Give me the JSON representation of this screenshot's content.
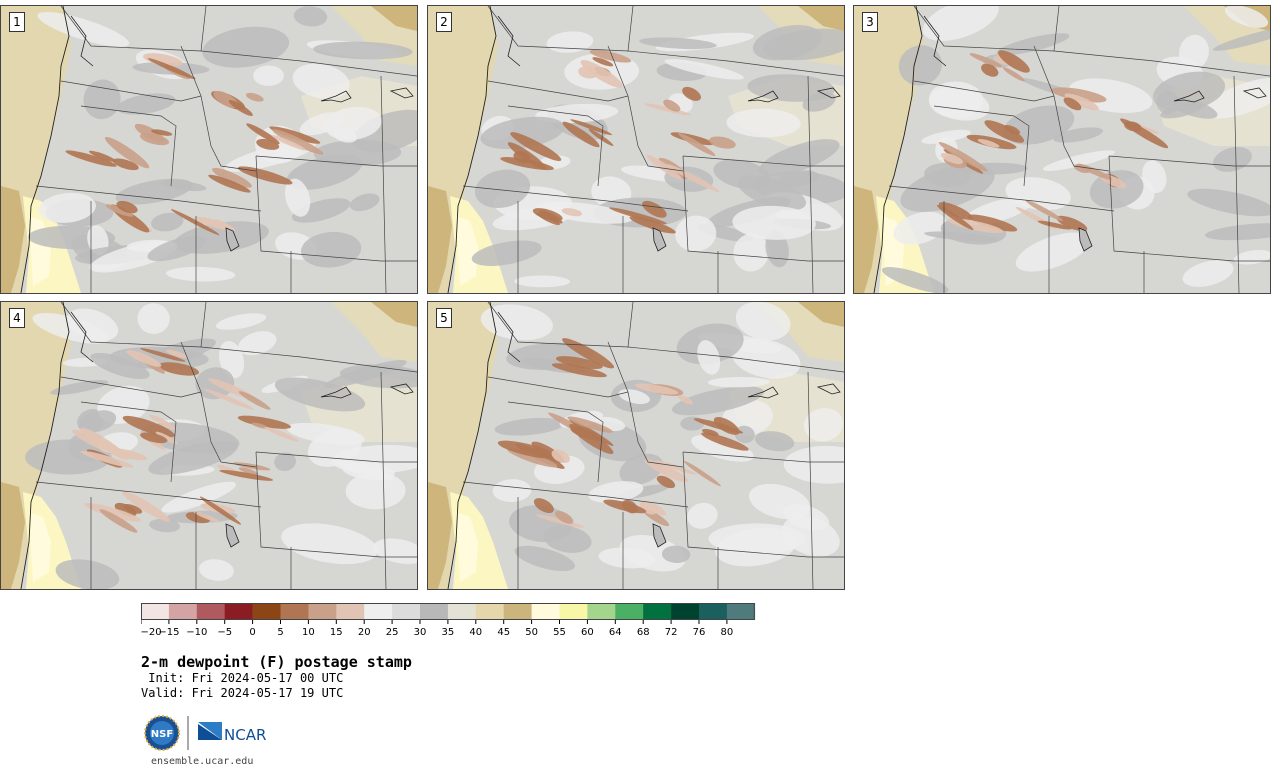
{
  "panels": [
    {
      "label": "1",
      "variant": 1
    },
    {
      "label": "2",
      "variant": 2
    },
    {
      "label": "3",
      "variant": 3
    },
    {
      "label": "4",
      "variant": 4
    },
    {
      "label": "5",
      "variant": 5
    }
  ],
  "colorbar": {
    "colors": [
      "#f2e5e3",
      "#d4a3a3",
      "#b05a60",
      "#8c1c24",
      "#8c4514",
      "#b07552",
      "#c9a088",
      "#e2c4b4",
      "#efefef",
      "#dcdcdc",
      "#b8b8b8",
      "#e4e2d4",
      "#e6d6ab",
      "#cbb57c",
      "#fffbdc",
      "#f8f7a8",
      "#a3d68c",
      "#4ab064",
      "#00713f",
      "#004230",
      "#1c5f5f",
      "#4f7b7d"
    ],
    "ticks": [
      "−20",
      "−15",
      "−10",
      "−5",
      "0",
      "5",
      "10",
      "15",
      "20",
      "25",
      "30",
      "35",
      "40",
      "45",
      "50",
      "55",
      "60",
      "64",
      "68",
      "72",
      "76",
      "80"
    ]
  },
  "title": "2-m dewpoint (F) postage stamp",
  "init": " Init: Fri 2024-05-17 00 UTC",
  "valid": "Valid: Fri 2024-05-17 19 UTC",
  "logos": {
    "nsf": "NSF",
    "ncar": "NCAR"
  },
  "site": "ensemble.ucar.edu"
}
